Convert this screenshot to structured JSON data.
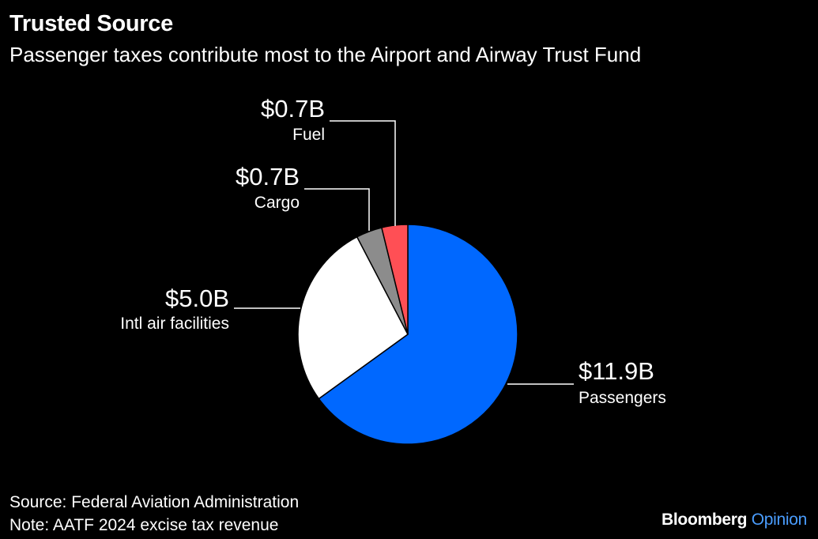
{
  "title": "Trusted Source",
  "subtitle": "Passenger taxes contribute most to the Airport and Airway Trust Fund",
  "source": "Source: Federal Aviation Administration",
  "note": "Note: AATF 2024 excise tax revenue",
  "brand": {
    "name": "Bloomberg",
    "suffix": "Opinion",
    "suffix_color": "#4a9dff"
  },
  "chart_data": {
    "type": "pie",
    "title": "Trusted Source",
    "subtitle": "Passenger taxes contribute most to the Airport and Airway Trust Fund",
    "unit": "$B",
    "slices": [
      {
        "name": "Passengers",
        "value": 11.9,
        "value_label": "$11.9B",
        "color": "#0068ff"
      },
      {
        "name": "Intl air facilities",
        "value": 5.0,
        "value_label": "$5.0B",
        "color": "#ffffff"
      },
      {
        "name": "Cargo",
        "value": 0.7,
        "value_label": "$0.7B",
        "color": "#8c8c8c"
      },
      {
        "name": "Fuel",
        "value": 0.7,
        "value_label": "$0.7B",
        "color": "#ff4f55"
      }
    ],
    "start": "12 o'clock",
    "direction": "clockwise",
    "legend": "none (direct labels)"
  }
}
